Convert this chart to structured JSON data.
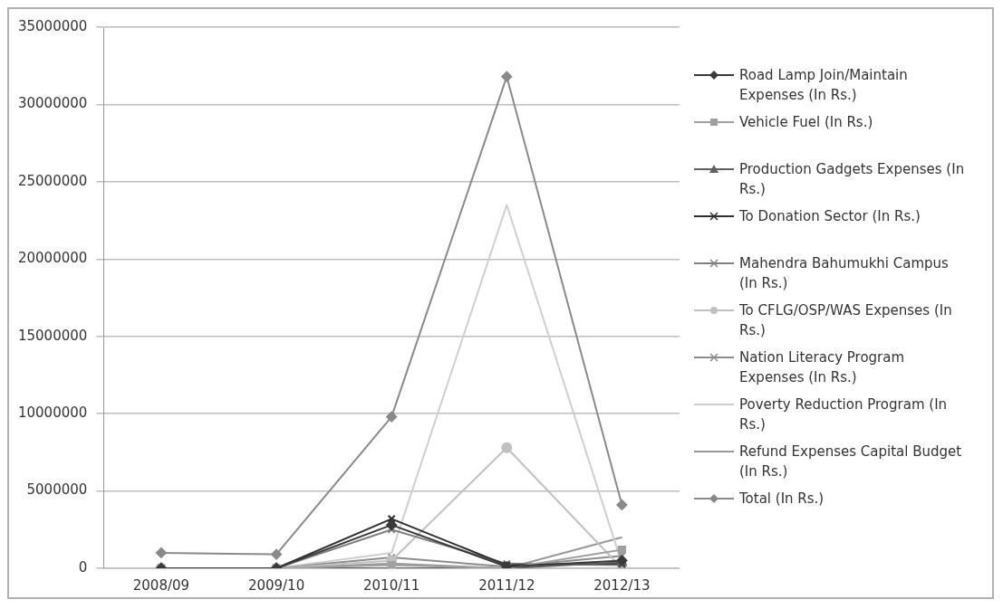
{
  "chart_data": {
    "type": "line",
    "categories": [
      "2008/09",
      "2009/10",
      "2010/11",
      "2011/12",
      "2012/13"
    ],
    "ylim": [
      0,
      35000000
    ],
    "yticks": [
      0,
      5000000,
      10000000,
      15000000,
      20000000,
      25000000,
      30000000,
      35000000
    ],
    "grid": "y",
    "legend": "right",
    "series": [
      {
        "name": "Road Lamp Join/Maintain Expenses (In Rs.)",
        "color": "#3a3a3a",
        "marker": "diamond",
        "values": [
          0,
          0,
          2800000,
          100000,
          500000
        ]
      },
      {
        "name": "Vehicle Fuel (In Rs.)",
        "color": "#a0a0a0",
        "marker": "square",
        "values": [
          0,
          0,
          200000,
          0,
          1200000
        ]
      },
      {
        "name": "Production Gadgets Expenses (In Rs.)",
        "color": "#606060",
        "marker": "triangle",
        "values": [
          0,
          0,
          0,
          0,
          400000
        ]
      },
      {
        "name": "To Donation Sector (In Rs.)",
        "color": "#2e2e2e",
        "marker": "cross",
        "values": [
          0,
          0,
          3200000,
          200000,
          300000
        ]
      },
      {
        "name": "Mahendra Bahumukhi Campus (In Rs.)",
        "color": "#808080",
        "marker": "cross",
        "values": [
          0,
          0,
          2500000,
          300000,
          200000
        ]
      },
      {
        "name": "To CFLG/OSP/WAS Expenses (In Rs.)",
        "color": "#c0c0c0",
        "marker": "circle",
        "values": [
          0,
          0,
          500000,
          7800000,
          0
        ]
      },
      {
        "name": "Nation Literacy Program Expenses (In Rs.)",
        "color": "#8c8c8c",
        "marker": "cross",
        "values": [
          0,
          0,
          700000,
          100000,
          800000
        ]
      },
      {
        "name": "Poverty Reduction Program (In Rs.)",
        "color": "#cfcfcf",
        "marker": "none",
        "values": [
          0,
          0,
          1000000,
          23500000,
          300000
        ]
      },
      {
        "name": "Refund Expenses Capital Budget (In Rs.)",
        "color": "#989898",
        "marker": "none",
        "values": [
          0,
          0,
          300000,
          0,
          2000000
        ]
      },
      {
        "name": "Total (In Rs.)",
        "color": "#8a8a8a",
        "marker": "diamond",
        "values": [
          1000000,
          900000,
          9800000,
          31800000,
          4100000
        ]
      }
    ]
  }
}
